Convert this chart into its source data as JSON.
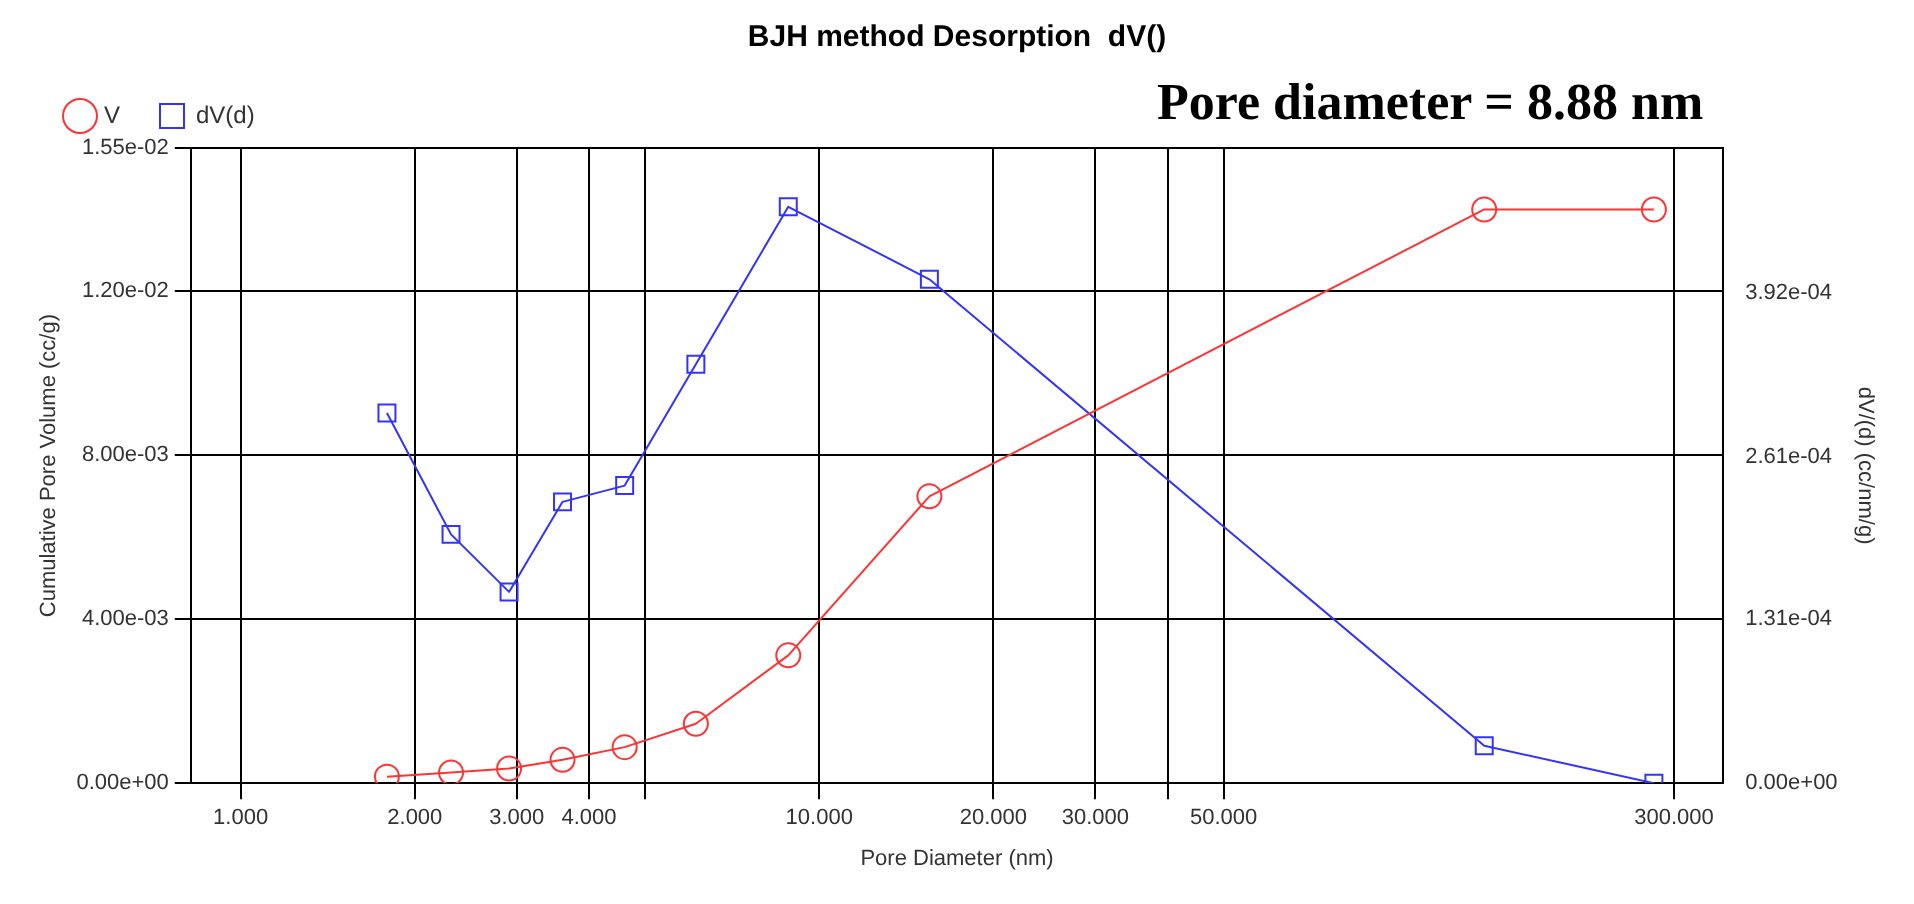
{
  "chart_data": {
    "type": "line",
    "title": "BJH method Desorption  dV()",
    "xlabel": "Pore Diameter (nm)",
    "ylabel": "Cumulative Pore Volume (cc/g)",
    "y2label": "dV/(d) (cc/nm/g)",
    "annotations": [
      "Pore diameter = 8.88 nm"
    ],
    "x": [
      1.79,
      2.31,
      2.91,
      3.6,
      4.61,
      6.12,
      8.84,
      15.5,
      141,
      277
    ],
    "series": [
      {
        "name": "V",
        "color": "#ff3333",
        "marker": "circle",
        "values": [
          0.00016,
          0.00026,
          0.00036,
          0.00057,
          0.00088,
          0.00145,
          0.00312,
          0.007,
          0.014,
          0.014
        ]
      },
      {
        "name": "dV(d)",
        "color": "#3333ff",
        "marker": "square",
        "axis": "y2",
        "values": [
          0.000296,
          0.000199,
          0.000153,
          0.000225,
          0.000238,
          0.000335,
          0.000461,
          0.000403,
          3e-05,
          0.0
        ]
      }
    ],
    "log": "x",
    "xlim": [
      0.82,
      365
    ],
    "xticks": [
      {
        "value": 1,
        "label": "1.000"
      },
      {
        "value": 2,
        "label": "2.000"
      },
      {
        "value": 3,
        "label": "3.000"
      },
      {
        "value": 4,
        "label": "4.000"
      },
      {
        "value": 5,
        "label": null
      },
      {
        "value": 10,
        "label": "10.000"
      },
      {
        "value": 20,
        "label": "20.000"
      },
      {
        "value": 30,
        "label": "30.000"
      },
      {
        "value": 40,
        "label": null
      },
      {
        "value": 50,
        "label": "50.000"
      },
      {
        "value": 300,
        "label": "300.000"
      }
    ],
    "ylim": [
      0,
      0.0155
    ],
    "yticks": [
      {
        "value": 0,
        "label": "0.00e+00"
      },
      {
        "value": 0.004,
        "label": "4.00e-03"
      },
      {
        "value": 0.008,
        "label": "8.00e-03"
      },
      {
        "value": 0.012,
        "label": "1.20e-02"
      },
      {
        "value": 0.0155,
        "label": "1.55e-02"
      }
    ],
    "y2lim": [
      0,
      0.000508
    ],
    "y2ticks": [
      {
        "value": 0,
        "label": "0.00e+00"
      },
      {
        "value": 0.000131,
        "label": "1.31e-04"
      },
      {
        "value": 0.000261,
        "label": "2.61e-04"
      },
      {
        "value": 0.000392,
        "label": "3.92e-04"
      }
    ],
    "grid": true,
    "legend": "top left"
  }
}
